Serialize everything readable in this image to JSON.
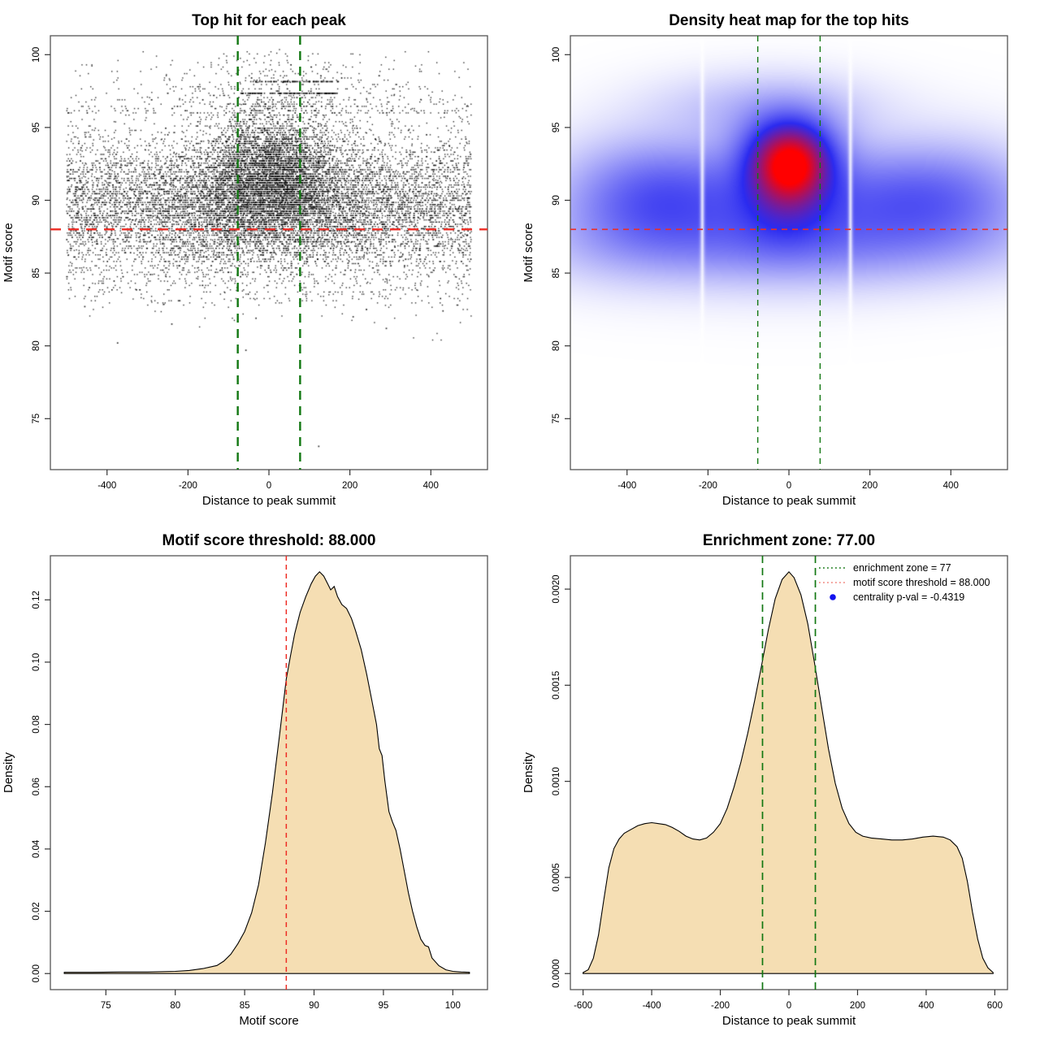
{
  "figure": {
    "background": "#FFFFFF"
  },
  "colors": {
    "green_line": "#117711",
    "red_line": "#EE2C24",
    "legend_red": "#F08078",
    "legend_blue": "#1212EE",
    "density_fill": "#F5DEB3",
    "density_stroke": "#000000",
    "scatter_point": "#000000",
    "box_stroke": "#555555",
    "heat_blue": "#2B2BF0",
    "heat_red": "#FF0000"
  },
  "chart_data": [
    {
      "type": "scatter",
      "title": "Top hit for each peak",
      "xlabel": "Distance to peak summit",
      "ylabel": "Motif score",
      "xlim": [
        -540,
        540
      ],
      "ylim": [
        71.5,
        101.3
      ],
      "xticks": [
        -400,
        -200,
        0,
        200,
        400
      ],
      "yticks": [
        75,
        80,
        85,
        90,
        95,
        100
      ],
      "hline": {
        "y": 88,
        "color": "#EE2C24"
      },
      "vlines": {
        "x": [
          -77,
          77
        ],
        "color": "#117711"
      },
      "point_color": "#000000",
      "distribution": {
        "seed": 12345,
        "quantize_y": 0.15,
        "clip_y": [
          72.6,
          100.35
        ],
        "clusters": [
          {
            "n": 8000,
            "x": {
              "kind": "uniform",
              "a": -500,
              "b": 500
            },
            "y": {
              "kind": "normal",
              "mean": 89.6,
              "sd": 2.55
            }
          },
          {
            "n": 4200,
            "x": {
              "kind": "normal",
              "mean": 8,
              "sd": 88
            },
            "y": {
              "kind": "normal",
              "mean": 92.0,
              "sd": 2.15
            }
          },
          {
            "n": 2600,
            "x": {
              "kind": "normal",
              "mean": 0,
              "sd": 165
            },
            "y": {
              "kind": "normal",
              "mean": 89.4,
              "sd": 2.0
            }
          },
          {
            "n": 330,
            "x": {
              "kind": "uniform",
              "a": -500,
              "b": 500
            },
            "y": {
              "kind": "powtop",
              "base": 96.0,
              "range": 3.6,
              "pow": 2.2
            }
          },
          {
            "n": 270,
            "x": {
              "kind": "normal",
              "mean": 25,
              "sd": 150
            },
            "y": {
              "kind": "powtop",
              "base": 96.4,
              "range": 3.9,
              "pow": 1.8
            }
          },
          {
            "n": 140,
            "x": {
              "kind": "uniform",
              "a": -480,
              "b": 480
            },
            "y": {
              "kind": "uniform",
              "a": 82.6,
              "b": 84.6
            }
          }
        ],
        "streaks": [
          {
            "y": 97.35,
            "x0": -70,
            "x1": 170,
            "n": 110
          },
          {
            "y": 98.15,
            "x0": -45,
            "x1": 175,
            "n": 75
          }
        ],
        "outliers": [
          [
            -374,
            80.2
          ],
          [
            -57,
            79.7
          ],
          [
            123,
            73.1
          ],
          [
            -240,
            81.5
          ],
          [
            290,
            81.2
          ],
          [
            -32,
            81.9
          ],
          [
            208,
            82.0
          ],
          [
            430,
            82.4
          ],
          [
            -455,
            82.7
          ]
        ]
      }
    },
    {
      "type": "heatmap",
      "title": "Density heat map for the top hits",
      "xlabel": "Distance to peak summit",
      "ylabel": "Motif score",
      "xlim": [
        -540,
        540
      ],
      "ylim": [
        71.5,
        101.3
      ],
      "xticks": [
        -400,
        -200,
        0,
        200,
        400
      ],
      "yticks": [
        75,
        80,
        85,
        90,
        95,
        100
      ],
      "hline": {
        "y": 88,
        "color": "#EE2C24"
      },
      "vlines": {
        "x": [
          -77,
          77
        ],
        "color": "#117711"
      },
      "colormap": [
        "#FFFFFF",
        "#2B2BF0",
        "#FF0000"
      ],
      "gap_lines_x": [
        -214,
        152
      ],
      "density_components": [
        {
          "amp": 0.34,
          "mx": -310,
          "my": 90.1,
          "sx": 135,
          "sy": 2.4
        },
        {
          "amp": 0.3,
          "mx": 320,
          "my": 89.9,
          "sx": 150,
          "sy": 2.2
        },
        {
          "amp": 0.3,
          "mx": 0,
          "my": 89.6,
          "sx": 230,
          "sy": 2.7
        },
        {
          "amp": 0.95,
          "mx": 5,
          "my": 92.4,
          "sx": 58,
          "sy": 1.55
        },
        {
          "amp": 0.5,
          "mx": 0,
          "my": 93.6,
          "sx": 80,
          "sy": 1.8
        },
        {
          "amp": 0.45,
          "mx": -5,
          "my": 90.6,
          "sx": 75,
          "sy": 2.2
        },
        {
          "amp": 0.16,
          "mx": 0,
          "my": 86.8,
          "sx": 380,
          "sy": 1.7
        },
        {
          "amp": 0.12,
          "mx": -60,
          "my": 96.3,
          "sx": 170,
          "sy": 1.5
        },
        {
          "amp": 0.1,
          "mx": -430,
          "my": 89.5,
          "sx": 120,
          "sy": 2.6
        },
        {
          "amp": 0.1,
          "mx": 440,
          "my": 90.3,
          "sx": 120,
          "sy": 2.5
        }
      ]
    },
    {
      "type": "area",
      "title": "Motif score threshold: 88.000",
      "xlabel": "Motif score",
      "ylabel": "Density",
      "xlim": [
        71,
        102.5
      ],
      "ylim": [
        -0.00516,
        0.13416
      ],
      "xticks": [
        75,
        80,
        85,
        90,
        95,
        100
      ],
      "yticks": [
        0.0,
        0.02,
        0.04,
        0.06,
        0.08,
        0.1,
        0.12
      ],
      "ytick_labels": [
        "0.00",
        "0.02",
        "0.04",
        "0.06",
        "0.08",
        "0.10",
        "0.12"
      ],
      "fill": "#F5DEB3",
      "stroke": "#000000",
      "vlines": {
        "x": [
          88
        ],
        "color": "#EE2C24"
      },
      "curve": [
        [
          72,
          0.0004
        ],
        [
          74,
          0.0004
        ],
        [
          76,
          0.0005
        ],
        [
          78,
          0.0005
        ],
        [
          80,
          0.0007
        ],
        [
          81,
          0.001
        ],
        [
          82,
          0.0016
        ],
        [
          83,
          0.0026
        ],
        [
          83.5,
          0.004
        ],
        [
          84,
          0.0062
        ],
        [
          84.5,
          0.0095
        ],
        [
          85,
          0.0135
        ],
        [
          85.5,
          0.0195
        ],
        [
          86,
          0.0285
        ],
        [
          86.5,
          0.042
        ],
        [
          87,
          0.058
        ],
        [
          87.5,
          0.076
        ],
        [
          88,
          0.0945
        ],
        [
          88.3,
          0.102
        ],
        [
          88.6,
          0.109
        ],
        [
          89,
          0.116
        ],
        [
          89.4,
          0.121
        ],
        [
          89.8,
          0.1252
        ],
        [
          90.1,
          0.1276
        ],
        [
          90.4,
          0.129
        ],
        [
          90.7,
          0.1276
        ],
        [
          91,
          0.125
        ],
        [
          91.2,
          0.1232
        ],
        [
          91.45,
          0.1243
        ],
        [
          91.7,
          0.121
        ],
        [
          92,
          0.1185
        ],
        [
          92.35,
          0.1172
        ],
        [
          92.7,
          0.114
        ],
        [
          93,
          0.11
        ],
        [
          93.4,
          0.104
        ],
        [
          93.8,
          0.096
        ],
        [
          94.2,
          0.087
        ],
        [
          94.5,
          0.08
        ],
        [
          94.7,
          0.0722
        ],
        [
          94.9,
          0.07
        ],
        [
          95.1,
          0.062
        ],
        [
          95.4,
          0.052
        ],
        [
          95.65,
          0.0487
        ],
        [
          95.9,
          0.046
        ],
        [
          96.2,
          0.04
        ],
        [
          96.5,
          0.033
        ],
        [
          96.8,
          0.026
        ],
        [
          97.1,
          0.02
        ],
        [
          97.4,
          0.015
        ],
        [
          97.7,
          0.011
        ],
        [
          98,
          0.009
        ],
        [
          98.25,
          0.0086
        ],
        [
          98.5,
          0.005
        ],
        [
          99,
          0.0025
        ],
        [
          99.5,
          0.0012
        ],
        [
          100,
          0.0007
        ],
        [
          100.6,
          0.0005
        ],
        [
          101.2,
          0.0004
        ]
      ]
    },
    {
      "type": "area",
      "title": "Enrichment zone: 77.00",
      "xlabel": "Distance to peak summit",
      "ylabel": "Density",
      "xlim": [
        -637,
        637
      ],
      "ylim": [
        -8.36e-05,
        0.0021736
      ],
      "xticks": [
        -600,
        -400,
        -200,
        0,
        200,
        400,
        600
      ],
      "yticks": [
        0.0,
        0.0005,
        0.001,
        0.0015,
        0.002
      ],
      "ytick_labels": [
        "0.0000",
        "0.0005",
        "0.0010",
        "0.0015",
        "0.0020"
      ],
      "fill": "#F5DEB3",
      "stroke": "#000000",
      "vlines": {
        "x": [
          -77,
          77
        ],
        "color": "#117711"
      },
      "legend": {
        "items": [
          {
            "marker": "dotted-line",
            "color": "#117711",
            "label": "enrichment zone = 77"
          },
          {
            "marker": "dotted-line",
            "color": "#F08078",
            "label": "motif score threshold = 88.000"
          },
          {
            "marker": "dot",
            "color": "#1212EE",
            "label": "centrality p-val = -0.4319"
          }
        ]
      },
      "curve": [
        [
          -600,
          5e-06
        ],
        [
          -585,
          2e-05
        ],
        [
          -570,
          8e-05
        ],
        [
          -555,
          0.0002
        ],
        [
          -540,
          0.00038
        ],
        [
          -525,
          0.00055
        ],
        [
          -510,
          0.00065
        ],
        [
          -495,
          0.0007
        ],
        [
          -480,
          0.00073
        ],
        [
          -460,
          0.00075
        ],
        [
          -440,
          0.00077
        ],
        [
          -420,
          0.00078
        ],
        [
          -400,
          0.000785
        ],
        [
          -380,
          0.00078
        ],
        [
          -360,
          0.000775
        ],
        [
          -340,
          0.00076
        ],
        [
          -320,
          0.00074
        ],
        [
          -300,
          0.000715
        ],
        [
          -280,
          0.0007
        ],
        [
          -260,
          0.000695
        ],
        [
          -240,
          0.000705
        ],
        [
          -220,
          0.000735
        ],
        [
          -200,
          0.00078
        ],
        [
          -180,
          0.00086
        ],
        [
          -160,
          0.00097
        ],
        [
          -140,
          0.0011
        ],
        [
          -120,
          0.00125
        ],
        [
          -100,
          0.00142
        ],
        [
          -80,
          0.0016
        ],
        [
          -60,
          0.00179
        ],
        [
          -40,
          0.00195
        ],
        [
          -20,
          0.00205
        ],
        [
          0,
          0.00209
        ],
        [
          15,
          0.00206
        ],
        [
          35,
          0.00197
        ],
        [
          55,
          0.00182
        ],
        [
          75,
          0.00161
        ],
        [
          95,
          0.00139
        ],
        [
          115,
          0.00117
        ],
        [
          135,
          0.00099
        ],
        [
          155,
          0.00086
        ],
        [
          175,
          0.00078
        ],
        [
          195,
          0.000735
        ],
        [
          215,
          0.000715
        ],
        [
          240,
          0.000705
        ],
        [
          270,
          0.0007
        ],
        [
          300,
          0.000695
        ],
        [
          330,
          0.000695
        ],
        [
          360,
          0.0007
        ],
        [
          390,
          0.00071
        ],
        [
          420,
          0.000715
        ],
        [
          450,
          0.00071
        ],
        [
          470,
          0.000695
        ],
        [
          490,
          0.00066
        ],
        [
          505,
          0.0006
        ],
        [
          520,
          0.00048
        ],
        [
          535,
          0.00032
        ],
        [
          550,
          0.00018
        ],
        [
          565,
          8e-05
        ],
        [
          580,
          3e-05
        ],
        [
          595,
          5e-06
        ]
      ]
    }
  ]
}
